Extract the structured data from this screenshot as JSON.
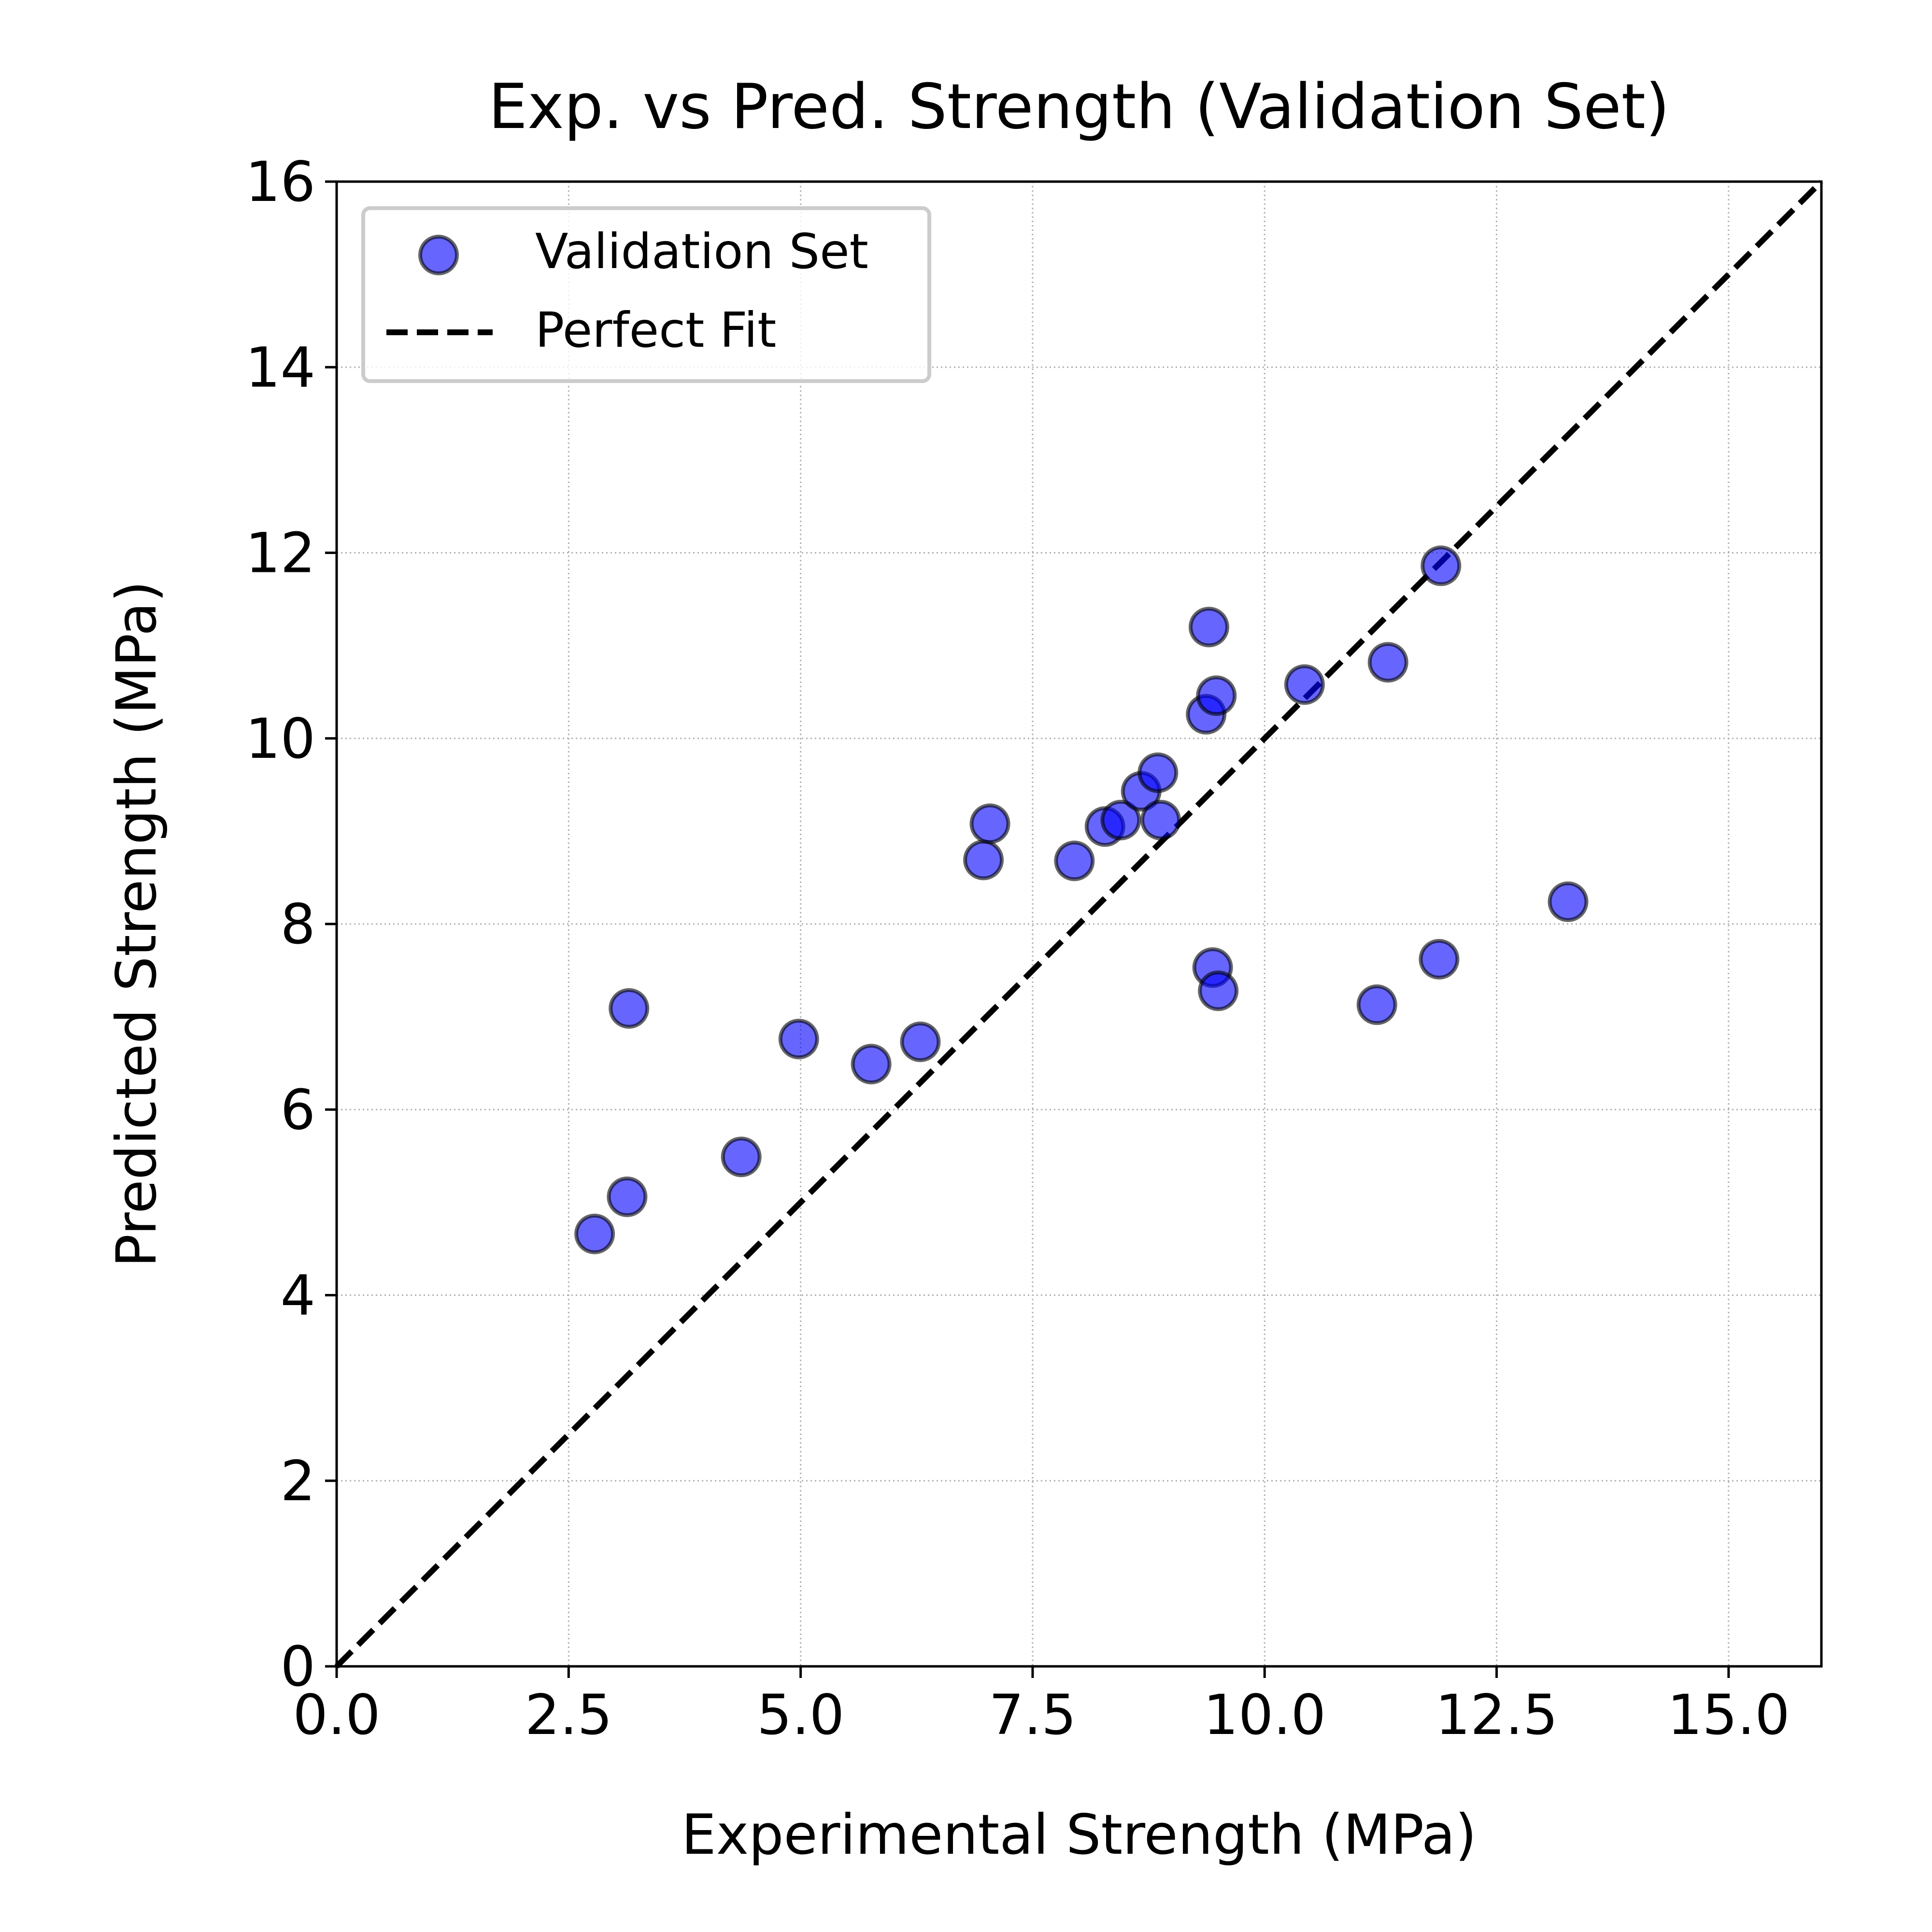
{
  "chart_data": {
    "type": "scatter",
    "title": "Exp. vs Pred. Strength (Validation Set)",
    "xlabel": "Experimental Strength (MPa)",
    "ylabel": "Predicted Strength (MPa)",
    "xlim": [
      0,
      16
    ],
    "ylim": [
      0,
      16
    ],
    "xticks": [
      0.0,
      2.5,
      5.0,
      7.5,
      10.0,
      12.5,
      15.0
    ],
    "xtick_labels": [
      "0.0",
      "2.5",
      "5.0",
      "7.5",
      "10.0",
      "12.5",
      "15.0"
    ],
    "yticks": [
      0,
      2,
      4,
      6,
      8,
      10,
      12,
      14,
      16
    ],
    "ytick_labels": [
      "0",
      "2",
      "4",
      "6",
      "8",
      "10",
      "12",
      "14",
      "16"
    ],
    "grid": true,
    "legend_position": "upper-left",
    "series": [
      {
        "name": "Validation Set",
        "kind": "scatter",
        "color": "#0000ff",
        "x": [
          2.78,
          3.13,
          3.15,
          4.36,
          4.98,
          5.76,
          6.29,
          6.97,
          7.04,
          7.95,
          8.28,
          8.45,
          8.67,
          8.85,
          8.88,
          9.37,
          9.4,
          9.44,
          9.48,
          9.5,
          10.43,
          11.21,
          11.33,
          11.88,
          11.9,
          13.27
        ],
        "y": [
          4.66,
          5.06,
          7.09,
          5.49,
          6.76,
          6.49,
          6.73,
          8.69,
          9.08,
          8.68,
          9.05,
          9.12,
          9.43,
          9.63,
          9.12,
          10.26,
          11.2,
          7.53,
          10.46,
          7.28,
          10.58,
          7.13,
          10.82,
          7.62,
          11.86,
          8.24
        ]
      },
      {
        "name": "Perfect Fit",
        "kind": "line",
        "style": "dashed",
        "color": "#000000",
        "x": [
          0,
          16
        ],
        "y": [
          0,
          16
        ]
      }
    ]
  }
}
